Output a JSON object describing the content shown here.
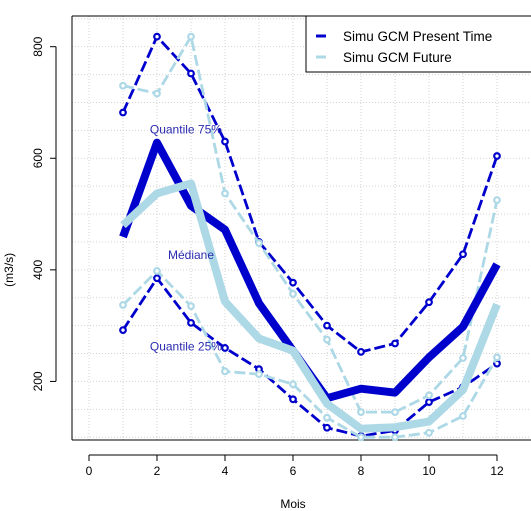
{
  "chart_data": {
    "type": "line",
    "xlabel": "Mois",
    "ylabel": "(m3/s)",
    "xlim": [
      -0.5,
      13
    ],
    "ylim": [
      95,
      855
    ],
    "x_ticks": [
      0,
      2,
      4,
      6,
      8,
      10,
      12
    ],
    "y_ticks": [
      200,
      400,
      600,
      800
    ],
    "grid": true,
    "legend_position": "top-right",
    "legend": [
      {
        "label": "Simu GCM Present Time",
        "color": "#0000CD"
      },
      {
        "label": "Simu GCM Future",
        "color": "#ADD8E6"
      }
    ],
    "annotations": [
      {
        "text": "Quantile 75%",
        "x": 2.85,
        "y": 652
      },
      {
        "text": "Médiane",
        "x": 3.0,
        "y": 427
      },
      {
        "text": "Quantile 25%",
        "x": 2.85,
        "y": 263
      }
    ],
    "x": [
      1,
      2,
      3,
      4,
      5,
      6,
      7,
      8,
      9,
      10,
      11,
      12
    ],
    "series": [
      {
        "group": "present",
        "role": "Quantile 75%",
        "color": "#0000CD",
        "style": "dashed-points",
        "values": [
          682,
          818,
          752,
          630,
          450,
          377,
          300,
          253,
          268,
          342,
          428,
          604
        ]
      },
      {
        "group": "present",
        "role": "Médiane",
        "color": "#0000CD",
        "style": "thick",
        "values": [
          459,
          628,
          515,
          472,
          340,
          255,
          170,
          187,
          180,
          243,
          298,
          410
        ]
      },
      {
        "group": "present",
        "role": "Quantile 25%",
        "color": "#0000CD",
        "style": "dashed-points",
        "values": [
          292,
          385,
          305,
          260,
          222,
          168,
          117,
          102,
          112,
          163,
          190,
          232
        ]
      },
      {
        "group": "future",
        "role": "Quantile 75%",
        "color": "#ADD8E6",
        "style": "dashed-points",
        "values": [
          730,
          716,
          818,
          537,
          448,
          357,
          275,
          145,
          145,
          175,
          242,
          525
        ]
      },
      {
        "group": "future",
        "role": "Médiane",
        "color": "#ADD8E6",
        "style": "thick",
        "values": [
          480,
          537,
          555,
          343,
          277,
          255,
          160,
          115,
          118,
          128,
          185,
          338
        ]
      },
      {
        "group": "future",
        "role": "Quantile 25%",
        "color": "#ADD8E6",
        "style": "dashed-points",
        "values": [
          337,
          398,
          335,
          218,
          213,
          195,
          135,
          100,
          100,
          108,
          138,
          243
        ]
      }
    ]
  }
}
